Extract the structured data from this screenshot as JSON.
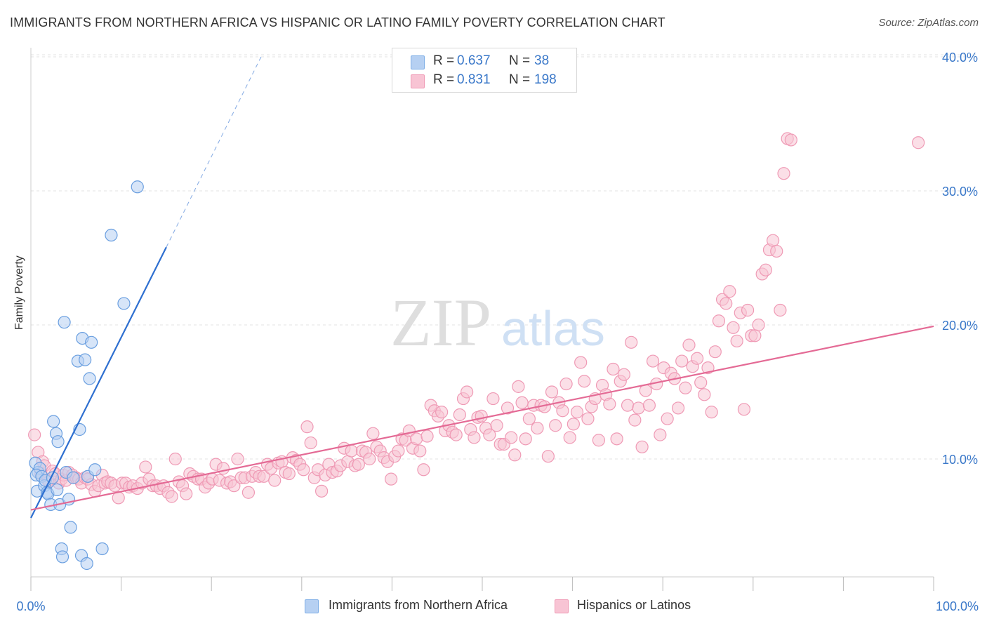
{
  "title": "IMMIGRANTS FROM NORTHERN AFRICA VS HISPANIC OR LATINO FAMILY POVERTY CORRELATION CHART",
  "source": "Source: ZipAtlas.com",
  "watermark": {
    "zip": "ZIP",
    "atlas": "atlas"
  },
  "legend_top": [
    {
      "r_label": "R =",
      "r_value": "0.637",
      "n_label": "N =",
      "n_value": "38",
      "color": "#b6d0f2",
      "stroke": "#7eaee6"
    },
    {
      "r_label": "R =",
      "r_value": "0.831",
      "n_label": "N =",
      "n_value": "198",
      "color": "#f8c4d4",
      "stroke": "#ef9ab5"
    }
  ],
  "legend_bottom": [
    {
      "label": "Immigrants from Northern Africa",
      "color": "#b6d0f2",
      "stroke": "#7eaee6"
    },
    {
      "label": "Hispanics or Latinos",
      "color": "#f8c4d4",
      "stroke": "#ef9ab5"
    }
  ],
  "chart_data": {
    "type": "scatter",
    "title": "IMMIGRANTS FROM NORTHERN AFRICA VS HISPANIC OR LATINO FAMILY POVERTY CORRELATION CHART",
    "xlabel": "",
    "ylabel": "Family Poverty",
    "xlim": [
      0,
      100
    ],
    "ylim": [
      0,
      42
    ],
    "x_tick_labels": [
      "0.0%",
      "100.0%"
    ],
    "y_ticks": [
      10,
      20,
      30,
      40
    ],
    "y_tick_labels": [
      "10.0%",
      "20.0%",
      "30.0%",
      "40.0%"
    ],
    "grid": true,
    "colors": {
      "blue": "#6a9fe0",
      "blue_fill": "#b6d0f2",
      "blue_line": "#2e6fd0",
      "pink": "#ef9ab5",
      "pink_fill": "#f8c4d4",
      "pink_line": "#e46a95",
      "tick_text": "#3a78c9"
    },
    "series": [
      {
        "name": "Immigrants from Northern Africa",
        "r": 0.637,
        "n": 38,
        "trend": {
          "x0": 0,
          "y0": 5.6,
          "x1": 15,
          "y1": 25.8,
          "dash_x1": 25.5,
          "dash_y1": 40.0
        },
        "points": [
          [
            0.5,
            9.7
          ],
          [
            0.8,
            9.0
          ],
          [
            1.0,
            9.3
          ],
          [
            0.6,
            8.8
          ],
          [
            0.7,
            7.6
          ],
          [
            1.2,
            8.7
          ],
          [
            1.5,
            8.0
          ],
          [
            1.6,
            8.4
          ],
          [
            1.8,
            7.5
          ],
          [
            1.9,
            7.4
          ],
          [
            2.2,
            6.6
          ],
          [
            2.4,
            8.6
          ],
          [
            2.5,
            12.8
          ],
          [
            2.8,
            11.9
          ],
          [
            2.9,
            7.7
          ],
          [
            3.0,
            11.3
          ],
          [
            3.2,
            6.6
          ],
          [
            3.4,
            3.3
          ],
          [
            3.5,
            2.7
          ],
          [
            3.7,
            20.2
          ],
          [
            3.9,
            9.0
          ],
          [
            4.2,
            7.0
          ],
          [
            4.4,
            4.9
          ],
          [
            4.7,
            8.6
          ],
          [
            5.2,
            17.3
          ],
          [
            5.4,
            12.2
          ],
          [
            5.6,
            2.8
          ],
          [
            5.7,
            19.0
          ],
          [
            6.0,
            17.4
          ],
          [
            6.2,
            2.2
          ],
          [
            6.3,
            8.7
          ],
          [
            6.5,
            16.0
          ],
          [
            6.7,
            18.7
          ],
          [
            7.1,
            9.2
          ],
          [
            7.9,
            3.3
          ],
          [
            8.9,
            26.7
          ],
          [
            10.3,
            21.6
          ],
          [
            11.8,
            30.3
          ]
        ]
      },
      {
        "name": "Hispanics or Latinos",
        "r": 0.831,
        "n": 198,
        "trend": {
          "x0": 0,
          "y0": 6.2,
          "x1": 100,
          "y1": 19.9
        },
        "points": [
          [
            0.4,
            11.8
          ],
          [
            0.8,
            10.5
          ],
          [
            1.1,
            8.9
          ],
          [
            1.3,
            9.8
          ],
          [
            1.5,
            9.5
          ],
          [
            1.9,
            8.4
          ],
          [
            2.0,
            8.3
          ],
          [
            2.4,
            9.1
          ],
          [
            2.7,
            8.9
          ],
          [
            3.1,
            8.2
          ],
          [
            3.4,
            8.5
          ],
          [
            3.6,
            8.8
          ],
          [
            3.9,
            8.4
          ],
          [
            4.2,
            9.0
          ],
          [
            4.6,
            8.8
          ],
          [
            5.0,
            8.6
          ],
          [
            5.3,
            8.5
          ],
          [
            5.6,
            8.2
          ],
          [
            6.0,
            8.6
          ],
          [
            6.3,
            8.5
          ],
          [
            6.7,
            8.1
          ],
          [
            7.1,
            7.6
          ],
          [
            7.5,
            8.0
          ],
          [
            7.9,
            8.8
          ],
          [
            8.2,
            8.2
          ],
          [
            8.5,
            8.3
          ],
          [
            8.9,
            8.2
          ],
          [
            9.3,
            8.0
          ],
          [
            9.7,
            7.1
          ],
          [
            10.1,
            8.2
          ],
          [
            10.5,
            8.2
          ],
          [
            10.9,
            7.9
          ],
          [
            11.3,
            8.0
          ],
          [
            11.8,
            7.8
          ],
          [
            12.3,
            8.2
          ],
          [
            12.7,
            9.4
          ],
          [
            13.1,
            8.5
          ],
          [
            13.5,
            8.0
          ],
          [
            13.9,
            8.0
          ],
          [
            14.3,
            7.8
          ],
          [
            14.7,
            8.0
          ],
          [
            15.2,
            7.5
          ],
          [
            15.6,
            7.2
          ],
          [
            16.0,
            10.0
          ],
          [
            16.4,
            8.3
          ],
          [
            16.8,
            8.0
          ],
          [
            17.2,
            7.4
          ],
          [
            17.6,
            8.9
          ],
          [
            18.0,
            8.7
          ],
          [
            18.5,
            8.5
          ],
          [
            18.9,
            8.5
          ],
          [
            19.3,
            7.9
          ],
          [
            19.7,
            8.2
          ],
          [
            20.1,
            8.5
          ],
          [
            20.5,
            9.6
          ],
          [
            20.9,
            8.4
          ],
          [
            21.3,
            9.3
          ],
          [
            21.7,
            8.2
          ],
          [
            22.1,
            8.3
          ],
          [
            22.5,
            8.0
          ],
          [
            22.9,
            10.0
          ],
          [
            23.3,
            8.6
          ],
          [
            23.7,
            8.6
          ],
          [
            24.1,
            7.5
          ],
          [
            24.5,
            8.7
          ],
          [
            24.9,
            9.0
          ],
          [
            25.3,
            8.7
          ],
          [
            25.8,
            8.7
          ],
          [
            26.2,
            9.6
          ],
          [
            26.6,
            9.3
          ],
          [
            27.0,
            8.4
          ],
          [
            27.4,
            9.7
          ],
          [
            27.8,
            9.8
          ],
          [
            28.2,
            9.0
          ],
          [
            28.6,
            8.9
          ],
          [
            29.0,
            10.1
          ],
          [
            29.4,
            9.9
          ],
          [
            29.8,
            9.6
          ],
          [
            30.2,
            9.2
          ],
          [
            30.6,
            12.4
          ],
          [
            31.0,
            11.2
          ],
          [
            31.4,
            8.6
          ],
          [
            31.8,
            9.2
          ],
          [
            32.2,
            7.6
          ],
          [
            32.6,
            8.8
          ],
          [
            33.0,
            9.6
          ],
          [
            33.4,
            9.0
          ],
          [
            33.9,
            9.1
          ],
          [
            34.3,
            9.5
          ],
          [
            34.7,
            10.8
          ],
          [
            35.1,
            9.8
          ],
          [
            35.5,
            10.6
          ],
          [
            35.9,
            9.5
          ],
          [
            36.3,
            9.6
          ],
          [
            36.7,
            10.6
          ],
          [
            37.1,
            10.5
          ],
          [
            37.5,
            10.0
          ],
          [
            37.9,
            11.9
          ],
          [
            38.3,
            10.9
          ],
          [
            38.7,
            10.6
          ],
          [
            39.1,
            10.1
          ],
          [
            39.5,
            9.8
          ],
          [
            39.9,
            8.5
          ],
          [
            40.3,
            10.2
          ],
          [
            40.7,
            10.6
          ],
          [
            41.1,
            11.5
          ],
          [
            41.5,
            11.4
          ],
          [
            41.9,
            12.1
          ],
          [
            42.3,
            10.8
          ],
          [
            42.7,
            11.5
          ],
          [
            43.1,
            10.6
          ],
          [
            43.5,
            9.2
          ],
          [
            43.9,
            11.7
          ],
          [
            44.3,
            14.0
          ],
          [
            44.7,
            13.6
          ],
          [
            45.1,
            13.2
          ],
          [
            45.5,
            13.5
          ],
          [
            45.9,
            12.1
          ],
          [
            46.3,
            12.5
          ],
          [
            46.7,
            12.0
          ],
          [
            47.1,
            11.8
          ],
          [
            47.5,
            13.3
          ],
          [
            47.9,
            14.5
          ],
          [
            48.3,
            15.0
          ],
          [
            48.7,
            12.2
          ],
          [
            49.1,
            11.6
          ],
          [
            49.5,
            13.1
          ],
          [
            49.9,
            13.2
          ],
          [
            50.4,
            12.3
          ],
          [
            50.8,
            11.8
          ],
          [
            51.2,
            14.5
          ],
          [
            51.6,
            12.5
          ],
          [
            52.0,
            11.1
          ],
          [
            52.4,
            11.1
          ],
          [
            52.8,
            13.8
          ],
          [
            53.2,
            11.6
          ],
          [
            53.6,
            10.3
          ],
          [
            54.0,
            15.4
          ],
          [
            54.4,
            14.2
          ],
          [
            54.8,
            11.5
          ],
          [
            55.2,
            13.0
          ],
          [
            55.7,
            14.0
          ],
          [
            56.1,
            12.3
          ],
          [
            56.5,
            14.0
          ],
          [
            56.9,
            13.9
          ],
          [
            57.3,
            10.2
          ],
          [
            57.7,
            15.0
          ],
          [
            58.1,
            12.5
          ],
          [
            58.5,
            14.2
          ],
          [
            58.9,
            13.6
          ],
          [
            59.3,
            15.6
          ],
          [
            59.7,
            11.6
          ],
          [
            60.1,
            12.6
          ],
          [
            60.5,
            13.5
          ],
          [
            60.9,
            17.2
          ],
          [
            61.3,
            15.8
          ],
          [
            61.7,
            13.0
          ],
          [
            62.1,
            13.9
          ],
          [
            62.5,
            14.5
          ],
          [
            62.9,
            11.4
          ],
          [
            63.3,
            15.5
          ],
          [
            63.7,
            14.8
          ],
          [
            64.1,
            14.1
          ],
          [
            64.5,
            16.7
          ],
          [
            64.9,
            11.5
          ],
          [
            65.3,
            15.8
          ],
          [
            65.7,
            16.3
          ],
          [
            66.1,
            14.0
          ],
          [
            66.5,
            18.7
          ],
          [
            66.9,
            12.9
          ],
          [
            67.3,
            13.8
          ],
          [
            67.7,
            10.9
          ],
          [
            68.1,
            15.1
          ],
          [
            68.5,
            14.0
          ],
          [
            68.9,
            17.3
          ],
          [
            69.3,
            15.6
          ],
          [
            69.7,
            11.8
          ],
          [
            70.1,
            16.8
          ],
          [
            70.5,
            13.0
          ],
          [
            70.9,
            16.4
          ],
          [
            71.3,
            16.0
          ],
          [
            71.7,
            13.8
          ],
          [
            72.1,
            17.3
          ],
          [
            72.5,
            15.3
          ],
          [
            72.9,
            18.5
          ],
          [
            73.3,
            16.9
          ],
          [
            73.8,
            17.5
          ],
          [
            74.2,
            15.7
          ],
          [
            74.6,
            14.8
          ],
          [
            75.0,
            16.8
          ],
          [
            75.4,
            13.5
          ],
          [
            75.8,
            18.0
          ],
          [
            76.2,
            20.3
          ],
          [
            76.6,
            21.9
          ],
          [
            77.0,
            21.6
          ],
          [
            77.4,
            22.5
          ],
          [
            77.8,
            19.8
          ],
          [
            78.2,
            18.8
          ],
          [
            78.6,
            20.9
          ],
          [
            79.0,
            13.7
          ],
          [
            79.4,
            21.1
          ],
          [
            79.8,
            19.2
          ],
          [
            80.2,
            19.2
          ],
          [
            80.6,
            20.0
          ],
          [
            81.0,
            23.8
          ],
          [
            81.4,
            24.1
          ],
          [
            81.8,
            25.6
          ],
          [
            82.2,
            26.3
          ],
          [
            82.6,
            25.5
          ],
          [
            83.0,
            21.1
          ],
          [
            83.4,
            31.3
          ],
          [
            83.8,
            33.9
          ],
          [
            84.2,
            33.8
          ],
          [
            98.3,
            33.6
          ]
        ]
      }
    ]
  }
}
